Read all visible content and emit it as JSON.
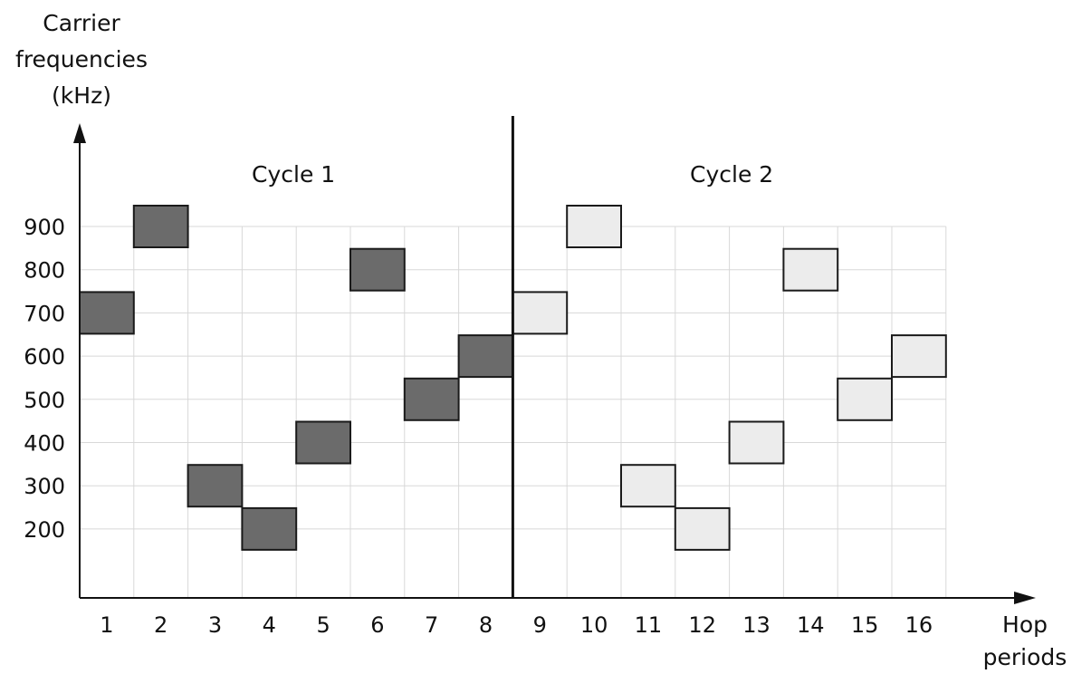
{
  "chart_data": {
    "type": "scatter",
    "ylabel_lines": [
      "Carrier",
      "frequencies",
      "(kHz)"
    ],
    "xlabel_lines": [
      "Hop",
      "periods"
    ],
    "x_ticks": [
      "1",
      "2",
      "3",
      "4",
      "5",
      "6",
      "7",
      "8",
      "9",
      "10",
      "11",
      "12",
      "13",
      "14",
      "15",
      "16"
    ],
    "y_ticks": [
      "200",
      "300",
      "400",
      "500",
      "600",
      "700",
      "800",
      "900"
    ],
    "annotations": [
      "Cycle 1",
      "Cycle 2"
    ],
    "cycle_boundary_after_period": 8,
    "grid": true,
    "series": [
      {
        "color": "#6b6b6b",
        "points": [
          {
            "x": 1,
            "y": 700
          },
          {
            "x": 2,
            "y": 900
          },
          {
            "x": 3,
            "y": 300
          },
          {
            "x": 4,
            "y": 200
          },
          {
            "x": 5,
            "y": 400
          },
          {
            "x": 6,
            "y": 800
          },
          {
            "x": 7,
            "y": 500
          },
          {
            "x": 8,
            "y": 600
          }
        ]
      },
      {
        "color": "#ececec",
        "points": [
          {
            "x": 9,
            "y": 700
          },
          {
            "x": 10,
            "y": 900
          },
          {
            "x": 11,
            "y": 300
          },
          {
            "x": 12,
            "y": 200
          },
          {
            "x": 13,
            "y": 400
          },
          {
            "x": 14,
            "y": 800
          },
          {
            "x": 15,
            "y": 500
          },
          {
            "x": 16,
            "y": 600
          }
        ]
      }
    ]
  }
}
